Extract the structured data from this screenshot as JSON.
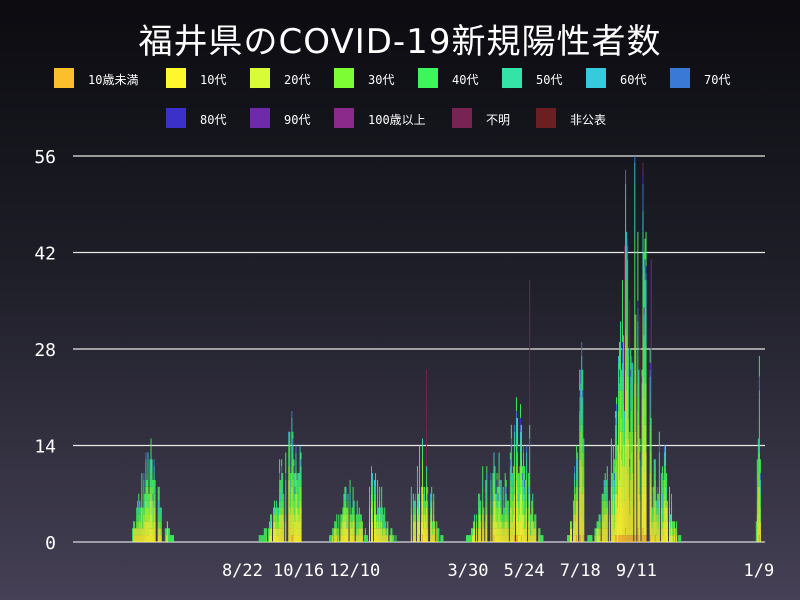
{
  "chart_data": {
    "type": "bar",
    "stacked": true,
    "title": "福井県のCOVID-19新規陽性者数",
    "xlabel": "",
    "ylabel": "",
    "ylim": [
      0,
      56
    ],
    "yticks": [
      0,
      14,
      28,
      42,
      56
    ],
    "grid": true,
    "legend_position": "top",
    "xtick_labels": [
      "8/22",
      "10/16",
      "12/10",
      "3/30",
      "5/24",
      "7/18",
      "9/11",
      "1/9"
    ],
    "xtick_day_index": [
      166,
      221,
      276,
      387,
      442,
      497,
      552,
      672
    ],
    "num_days": 678,
    "series": [
      {
        "name": "10歳未満",
        "color": "#fbbf2c"
      },
      {
        "name": "10代",
        "color": "#fdf72c"
      },
      {
        "name": "20代",
        "color": "#d8fd36"
      },
      {
        "name": "30代",
        "color": "#7dfd34"
      },
      {
        "name": "40代",
        "color": "#3cf65c"
      },
      {
        "name": "50代",
        "color": "#33e4a6"
      },
      {
        "name": "60代",
        "color": "#36cbdc"
      },
      {
        "name": "70代",
        "color": "#3a79d5"
      },
      {
        "name": "80代",
        "color": "#3a31c9"
      },
      {
        "name": "90代",
        "color": "#6d2ba9"
      },
      {
        "name": "100歳以上",
        "color": "#8c2a8c"
      },
      {
        "name": "不明",
        "color": "#782452"
      },
      {
        "name": "非公表",
        "color": "#6a1f22"
      }
    ],
    "clusters": [
      {
        "start": 58,
        "end": 98,
        "peak": 12,
        "peakDay": 75
      },
      {
        "start": 170,
        "end": 225,
        "peak": 16,
        "peakDay": 215
      },
      {
        "start": 250,
        "end": 290,
        "peak": 8,
        "peakDay": 270
      },
      {
        "start": 290,
        "end": 330,
        "peak": 10,
        "peakDay": 293
      },
      {
        "start": 330,
        "end": 370,
        "peak": 14,
        "peakDay": 340
      },
      {
        "start": 378,
        "end": 420,
        "peak": 14,
        "peakDay": 410
      },
      {
        "start": 420,
        "end": 462,
        "peak": 18,
        "peakDay": 435
      },
      {
        "start": 480,
        "end": 500,
        "peak": 25,
        "peakDay": 497
      },
      {
        "start": 502,
        "end": 565,
        "peak": 56,
        "peakDay": 550
      },
      {
        "start": 565,
        "end": 600,
        "peak": 14,
        "peakDay": 575
      },
      {
        "start": 667,
        "end": 673,
        "peak": 27,
        "peakDay": 672
      }
    ],
    "highlights": [
      {
        "day": 346,
        "total": 25,
        "top": "不明"
      },
      {
        "day": 447,
        "total": 38,
        "top": "不明"
      },
      {
        "day": 540,
        "total": 43,
        "top": "不明"
      },
      {
        "day": 545,
        "total": 35,
        "top": "不明"
      },
      {
        "day": 555,
        "total": 33,
        "top": "不明"
      },
      {
        "day": 566,
        "total": 41,
        "top": "90代"
      }
    ]
  }
}
